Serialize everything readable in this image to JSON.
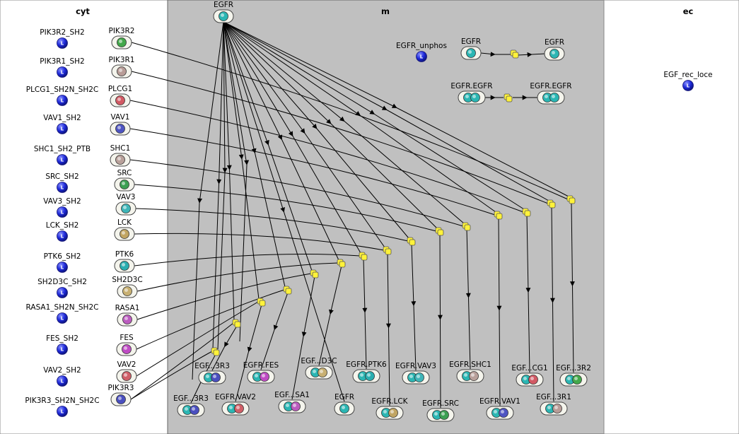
{
  "colors": {
    "compartment_m_fill": "#c0c0c0",
    "ligand_fill": "#1c28d8",
    "process_node": "#f3ef3a",
    "EGFR": "#2bb6b3",
    "PIK3R2": "#43a84a",
    "PIK3R1": "#b89c97",
    "PLCG1": "#d25a64",
    "VAV1": "#4f55c2",
    "SHC1": "#b8a09a",
    "SRC": "#3da052",
    "VAV3": "#3fb5b8",
    "LCK": "#c1a562",
    "PTK6": "#2aaeb0",
    "SH2D3C": "#c8b072",
    "RASA1": "#bb5cbf",
    "FES": "#bf4cc4",
    "VAV2": "#d06068",
    "PIK3R3": "#4a4fbf"
  },
  "compartments": {
    "cyt": "cyt",
    "m": "m",
    "ec": "ec"
  },
  "ligands": [
    {
      "id": "PIK3R2_SH2",
      "label": "PIK3R2_SH2"
    },
    {
      "id": "PIK3R1_SH2",
      "label": "PIK3R1_SH2"
    },
    {
      "id": "PLCG1_SH2N_SH2C",
      "label": "PLCG1_SH2N_SH2C"
    },
    {
      "id": "VAV1_SH2",
      "label": "VAV1_SH2"
    },
    {
      "id": "SHC1_SH2_PTB",
      "label": "SHC1_SH2_PTB"
    },
    {
      "id": "SRC_SH2",
      "label": "SRC_SH2"
    },
    {
      "id": "VAV3_SH2",
      "label": "VAV3_SH2"
    },
    {
      "id": "LCK_SH2",
      "label": "LCK_SH2"
    },
    {
      "id": "PTK6_SH2",
      "label": "PTK6_SH2"
    },
    {
      "id": "SH2D3C_SH2",
      "label": "SH2D3C_SH2"
    },
    {
      "id": "RASA1_SH2N_SH2C",
      "label": "RASA1_SH2N_SH2C"
    },
    {
      "id": "FES_SH2",
      "label": "FES_SH2"
    },
    {
      "id": "VAV2_SH2",
      "label": "VAV2_SH2"
    },
    {
      "id": "PIK3R3_SH2N_SH2C",
      "label": "PIK3R3_SH2N_SH2C"
    }
  ],
  "proteins": [
    {
      "id": "PIK3R2",
      "label": "PIK3R2",
      "color": "#43a84a"
    },
    {
      "id": "PIK3R1",
      "label": "PIK3R1",
      "color": "#b89c97"
    },
    {
      "id": "PLCG1",
      "label": "PLCG1",
      "color": "#d25a64"
    },
    {
      "id": "VAV1",
      "label": "VAV1",
      "color": "#4f55c2"
    },
    {
      "id": "SHC1",
      "label": "SHC1",
      "color": "#b8a09a"
    },
    {
      "id": "SRC",
      "label": "SRC",
      "color": "#3da052"
    },
    {
      "id": "VAV3",
      "label": "VAV3",
      "color": "#3fb5b8"
    },
    {
      "id": "LCK",
      "label": "LCK",
      "color": "#c1a562"
    },
    {
      "id": "PTK6",
      "label": "PTK6",
      "color": "#2aaeb0"
    },
    {
      "id": "SH2D3C",
      "label": "SH2D3C",
      "color": "#c8b072"
    },
    {
      "id": "RASA1",
      "label": "RASA1",
      "color": "#bb5cbf"
    },
    {
      "id": "FES",
      "label": "FES",
      "color": "#bf4cc4"
    },
    {
      "id": "VAV2",
      "label": "VAV2",
      "color": "#d06068"
    },
    {
      "id": "PIK3R3",
      "label": "PIK3R3",
      "color": "#4a4fbf"
    }
  ],
  "egfr_top": {
    "label": "EGFR",
    "color": "#2bb6b3"
  },
  "egfr_unphos": {
    "label": "EGFR_unphos"
  },
  "egf_rec_loce": {
    "label": "EGF_rec_loce"
  },
  "phos_reaction": {
    "reactant": "EGFR",
    "product": "EGFR"
  },
  "dimer_reaction": {
    "reactant": "EGFR.EGFR",
    "product": "EGFR.EGFR"
  },
  "complexes": [
    {
      "id": "c_pik3r2",
      "label": "EGF...3R2",
      "partner": "PIK3R2"
    },
    {
      "id": "c_pik3r1",
      "label": "EGF...3R1",
      "partner": "PIK3R1"
    },
    {
      "id": "c_plcg1",
      "label": "EGF...CG1",
      "partner": "PLCG1"
    },
    {
      "id": "c_vav1",
      "label": "EGFR.VAV1",
      "partner": "VAV1"
    },
    {
      "id": "c_shc1",
      "label": "EGFR.SHC1",
      "partner": "SHC1"
    },
    {
      "id": "c_src",
      "label": "EGFR.SRC",
      "partner": "SRC"
    },
    {
      "id": "c_vav3",
      "label": "EGFR.VAV3",
      "partner": "VAV3"
    },
    {
      "id": "c_lck",
      "label": "EGFR.LCK",
      "partner": "LCK"
    },
    {
      "id": "c_ptk6",
      "label": "EGFR.PTK6",
      "partner": "PTK6"
    },
    {
      "id": "c_egfr",
      "label": "EGFR",
      "partner": null
    },
    {
      "id": "c_sh2d3c",
      "label": "EGF...D3C",
      "partner": "SH2D3C"
    },
    {
      "id": "c_rasa1",
      "label": "EGF...SA1",
      "partner": "RASA1"
    },
    {
      "id": "c_fes",
      "label": "EGFR.FES",
      "partner": "FES"
    },
    {
      "id": "c_vav2",
      "label": "EGFR.VAV2",
      "partner": "VAV2"
    },
    {
      "id": "c_pik3r3a",
      "label": "EGF...3R3",
      "partner": "PIK3R3"
    },
    {
      "id": "c_pik3r3b",
      "label": "EGF...3R3",
      "partner": "PIK3R3"
    }
  ]
}
